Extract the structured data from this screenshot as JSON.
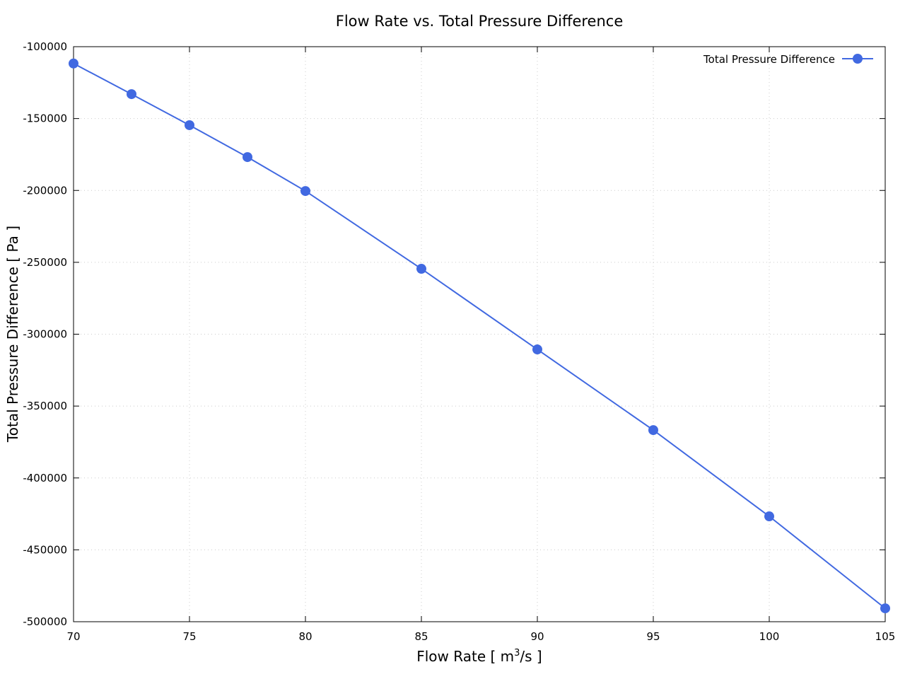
{
  "chart_data": {
    "type": "line",
    "title": "Flow Rate vs. Total Pressure Difference",
    "xlabel_prefix": "Flow Rate [ m",
    "xlabel_sup": "3",
    "xlabel_suffix": "/s ]",
    "ylabel": "Total Pressure Difference [ Pa ]",
    "xlim": [
      70,
      105
    ],
    "ylim": [
      -500000,
      -100000
    ],
    "xticks": [
      "70",
      "75",
      "80",
      "85",
      "90",
      "95",
      "100",
      "105"
    ],
    "yticks": [
      "-100000",
      "-150000",
      "-200000",
      "-250000",
      "-300000",
      "-350000",
      "-400000",
      "-450000",
      "-500000"
    ],
    "grid": true,
    "legend_position": "top-right",
    "series": [
      {
        "name": "Total Pressure Difference",
        "color": "#4169e1",
        "x": [
          70,
          72.5,
          75,
          77.5,
          80,
          85,
          90,
          95,
          100,
          105
        ],
        "y": [
          -111700,
          -133000,
          -154600,
          -176800,
          -200400,
          -254500,
          -310600,
          -366700,
          -426700,
          -490700
        ]
      }
    ]
  }
}
